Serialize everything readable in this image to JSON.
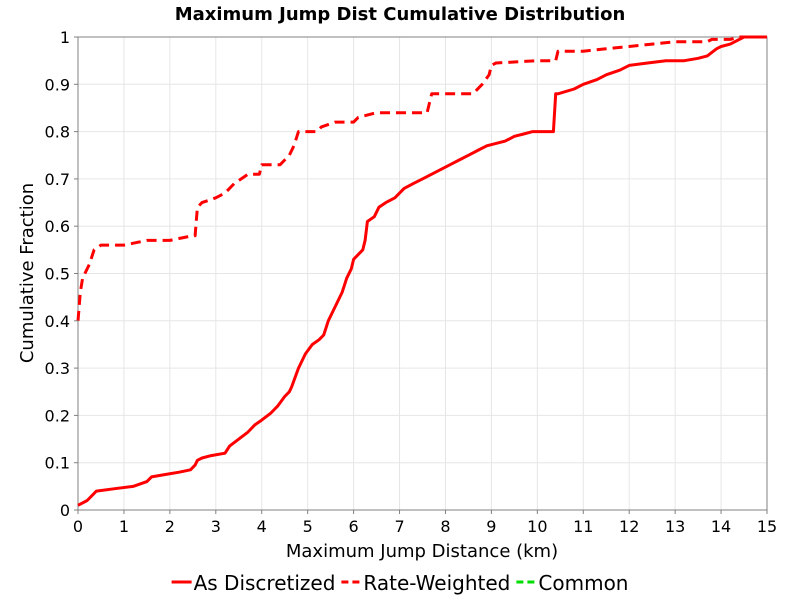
{
  "chart_data": {
    "type": "line",
    "title": "Maximum Jump Dist Cumulative Distribution",
    "xlabel": "Maximum Jump Distance (km)",
    "ylabel": "Cumulative Fraction",
    "xlim": [
      0,
      15
    ],
    "ylim": [
      0,
      1
    ],
    "x_ticks": [
      0,
      1,
      2,
      3,
      4,
      5,
      6,
      7,
      8,
      9,
      10,
      11,
      12,
      13,
      14,
      15
    ],
    "y_ticks": [
      0,
      0.1,
      0.2,
      0.3,
      0.4,
      0.5,
      0.6,
      0.7,
      0.8,
      0.9,
      1
    ],
    "y_tick_labels": [
      "0",
      "0.1",
      "0.2",
      "0.3",
      "0.4",
      "0.5",
      "0.6",
      "0.7",
      "0.8",
      "0.9",
      "1"
    ],
    "grid": true,
    "legend_position": "bottom",
    "series": [
      {
        "name": "As Discretized",
        "color": "#ff0000",
        "dash": "solid",
        "x": [
          0,
          0.2,
          0.4,
          0.8,
          1.2,
          1.5,
          1.6,
          1.9,
          2.2,
          2.45,
          2.55,
          2.6,
          2.7,
          2.9,
          3.2,
          3.3,
          3.5,
          3.7,
          3.85,
          4.0,
          4.2,
          4.35,
          4.5,
          4.6,
          4.65,
          4.8,
          4.95,
          5.1,
          5.25,
          5.35,
          5.45,
          5.6,
          5.75,
          5.85,
          5.95,
          6.0,
          6.1,
          6.2,
          6.25,
          6.3,
          6.45,
          6.55,
          6.7,
          6.9,
          7.1,
          7.3,
          7.5,
          7.7,
          7.9,
          8.1,
          8.3,
          8.5,
          8.7,
          8.9,
          9.1,
          9.3,
          9.5,
          9.7,
          9.9,
          10.1,
          10.35,
          10.4,
          10.45,
          10.8,
          11.0,
          11.3,
          11.5,
          11.8,
          12.0,
          12.4,
          12.8,
          13.2,
          13.5,
          13.7,
          13.9,
          14.0,
          14.2,
          14.5,
          14.7,
          15.0
        ],
        "y": [
          0.01,
          0.02,
          0.04,
          0.045,
          0.05,
          0.06,
          0.07,
          0.075,
          0.08,
          0.085,
          0.095,
          0.105,
          0.11,
          0.115,
          0.12,
          0.135,
          0.15,
          0.165,
          0.18,
          0.19,
          0.205,
          0.22,
          0.24,
          0.25,
          0.26,
          0.3,
          0.33,
          0.35,
          0.36,
          0.37,
          0.4,
          0.43,
          0.46,
          0.49,
          0.51,
          0.53,
          0.54,
          0.55,
          0.57,
          0.61,
          0.62,
          0.64,
          0.65,
          0.66,
          0.68,
          0.69,
          0.7,
          0.71,
          0.72,
          0.73,
          0.74,
          0.75,
          0.76,
          0.77,
          0.775,
          0.78,
          0.79,
          0.795,
          0.8,
          0.8,
          0.8,
          0.88,
          0.88,
          0.89,
          0.9,
          0.91,
          0.92,
          0.93,
          0.94,
          0.945,
          0.95,
          0.95,
          0.955,
          0.96,
          0.975,
          0.98,
          0.985,
          1.0,
          1.0,
          1.0
        ]
      },
      {
        "name": "Rate-Weighted",
        "color": "#ff0000",
        "dash": "dashed",
        "x": [
          0,
          0.05,
          0.1,
          0.25,
          0.35,
          0.5,
          1.0,
          1.5,
          2.0,
          2.5,
          2.55,
          2.6,
          2.7,
          3.0,
          3.2,
          3.4,
          3.7,
          3.95,
          4.0,
          4.4,
          4.5,
          4.6,
          4.7,
          4.8,
          5.2,
          5.3,
          5.6,
          6.0,
          6.1,
          6.5,
          6.9,
          7.0,
          7.6,
          7.65,
          7.7,
          8.6,
          8.8,
          8.95,
          9.0,
          9.1,
          10.0,
          10.4,
          10.45,
          11.0,
          11.5,
          12.0,
          12.5,
          13.0,
          13.7,
          13.8,
          14.2,
          14.4,
          14.6,
          15.0
        ],
        "y": [
          0.4,
          0.46,
          0.49,
          0.52,
          0.55,
          0.56,
          0.56,
          0.57,
          0.57,
          0.58,
          0.58,
          0.64,
          0.65,
          0.66,
          0.67,
          0.69,
          0.71,
          0.71,
          0.73,
          0.73,
          0.74,
          0.75,
          0.77,
          0.8,
          0.8,
          0.81,
          0.82,
          0.82,
          0.83,
          0.84,
          0.84,
          0.84,
          0.84,
          0.86,
          0.88,
          0.88,
          0.9,
          0.92,
          0.94,
          0.945,
          0.95,
          0.95,
          0.97,
          0.97,
          0.975,
          0.98,
          0.985,
          0.99,
          0.99,
          0.995,
          0.995,
          1.0,
          1.0,
          1.0
        ]
      },
      {
        "name": "Common",
        "color": "#00dd00",
        "dash": "dashed",
        "x": [],
        "y": []
      }
    ]
  }
}
